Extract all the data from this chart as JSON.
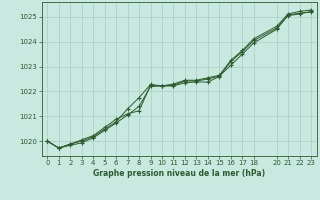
{
  "title": "Graphe pression niveau de la mer (hPa)",
  "bg_color": "#c8e8e0",
  "grid_color": "#a8ccc4",
  "line_color": "#2d5c2d",
  "xlim": [
    -0.5,
    23.5
  ],
  "ylim": [
    1019.4,
    1025.6
  ],
  "xticks": [
    0,
    1,
    2,
    3,
    4,
    5,
    6,
    7,
    8,
    9,
    10,
    11,
    12,
    13,
    14,
    15,
    16,
    17,
    18,
    20,
    21,
    22,
    23
  ],
  "yticks": [
    1020,
    1021,
    1022,
    1023,
    1024,
    1025
  ],
  "line1_x": [
    0,
    1,
    2,
    3,
    4,
    5,
    6,
    7,
    8,
    9,
    10,
    11,
    12,
    13,
    14,
    15,
    16,
    17,
    18,
    20,
    21,
    22,
    23
  ],
  "line1_y": [
    1020.0,
    1019.72,
    1019.83,
    1019.93,
    1020.13,
    1020.43,
    1020.73,
    1021.05,
    1021.4,
    1022.2,
    1022.22,
    1022.22,
    1022.35,
    1022.38,
    1022.38,
    1022.6,
    1023.2,
    1023.6,
    1024.05,
    1024.55,
    1025.05,
    1025.12,
    1025.22
  ],
  "line2_x": [
    0,
    1,
    2,
    3,
    4,
    5,
    6,
    7,
    8,
    9,
    10,
    11,
    12,
    13,
    14,
    15,
    16,
    17,
    18,
    20,
    21,
    22,
    23
  ],
  "line2_y": [
    1020.0,
    1019.72,
    1019.88,
    1020.0,
    1020.18,
    1020.48,
    1020.78,
    1021.3,
    1021.75,
    1022.28,
    1022.22,
    1022.25,
    1022.42,
    1022.42,
    1022.5,
    1022.62,
    1023.05,
    1023.5,
    1023.95,
    1024.5,
    1025.08,
    1025.15,
    1025.2
  ],
  "line3_x": [
    0,
    1,
    2,
    3,
    4,
    5,
    6,
    7,
    8,
    9,
    10,
    11,
    12,
    13,
    14,
    15,
    16,
    17,
    18,
    20,
    21,
    22,
    23
  ],
  "line3_y": [
    1020.0,
    1019.72,
    1019.88,
    1020.05,
    1020.22,
    1020.55,
    1020.88,
    1021.1,
    1021.22,
    1022.25,
    1022.22,
    1022.3,
    1022.45,
    1022.45,
    1022.55,
    1022.65,
    1023.25,
    1023.65,
    1024.12,
    1024.62,
    1025.12,
    1025.22,
    1025.28
  ]
}
